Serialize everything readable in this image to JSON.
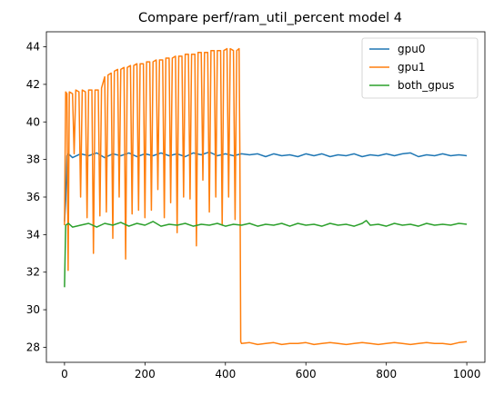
{
  "chart_data": {
    "type": "line",
    "title": "Compare perf/ram_util_percent model 4",
    "xlabel": "",
    "ylabel": "",
    "xlim": [
      -45,
      1045
    ],
    "ylim": [
      27.2,
      44.8
    ],
    "x_ticks": [
      0,
      200,
      400,
      600,
      800,
      1000
    ],
    "y_ticks": [
      28,
      30,
      32,
      34,
      36,
      38,
      40,
      42,
      44
    ],
    "grid": false,
    "legend_position": "top-right",
    "series": [
      {
        "name": "gpu0",
        "color": "#1f77b4",
        "points": [
          [
            0,
            34.7
          ],
          [
            3,
            35.8
          ],
          [
            6,
            38.2
          ],
          [
            10,
            38.3
          ],
          [
            20,
            38.1
          ],
          [
            40,
            38.3
          ],
          [
            60,
            38.2
          ],
          [
            80,
            38.35
          ],
          [
            100,
            38.1
          ],
          [
            120,
            38.3
          ],
          [
            140,
            38.2
          ],
          [
            160,
            38.35
          ],
          [
            180,
            38.15
          ],
          [
            200,
            38.3
          ],
          [
            220,
            38.2
          ],
          [
            240,
            38.35
          ],
          [
            260,
            38.2
          ],
          [
            280,
            38.3
          ],
          [
            300,
            38.15
          ],
          [
            320,
            38.35
          ],
          [
            340,
            38.25
          ],
          [
            360,
            38.4
          ],
          [
            380,
            38.2
          ],
          [
            400,
            38.3
          ],
          [
            420,
            38.2
          ],
          [
            440,
            38.3
          ],
          [
            460,
            38.25
          ],
          [
            480,
            38.3
          ],
          [
            500,
            38.15
          ],
          [
            520,
            38.3
          ],
          [
            540,
            38.2
          ],
          [
            560,
            38.25
          ],
          [
            580,
            38.15
          ],
          [
            600,
            38.3
          ],
          [
            620,
            38.2
          ],
          [
            640,
            38.3
          ],
          [
            660,
            38.15
          ],
          [
            680,
            38.25
          ],
          [
            700,
            38.2
          ],
          [
            720,
            38.3
          ],
          [
            740,
            38.15
          ],
          [
            760,
            38.25
          ],
          [
            780,
            38.2
          ],
          [
            800,
            38.3
          ],
          [
            820,
            38.2
          ],
          [
            840,
            38.3
          ],
          [
            860,
            38.35
          ],
          [
            880,
            38.15
          ],
          [
            900,
            38.25
          ],
          [
            920,
            38.2
          ],
          [
            940,
            38.3
          ],
          [
            960,
            38.2
          ],
          [
            980,
            38.25
          ],
          [
            1000,
            38.2
          ]
        ]
      },
      {
        "name": "gpu1",
        "color": "#ff7f0e",
        "points": [
          [
            0,
            34.5
          ],
          [
            3,
            41.6
          ],
          [
            6,
            41.5
          ],
          [
            9,
            32.1
          ],
          [
            12,
            41.6
          ],
          [
            20,
            41.5
          ],
          [
            24,
            38.3
          ],
          [
            28,
            41.7
          ],
          [
            36,
            41.6
          ],
          [
            40,
            36.0
          ],
          [
            44,
            41.7
          ],
          [
            52,
            41.6
          ],
          [
            56,
            34.9
          ],
          [
            60,
            41.7
          ],
          [
            68,
            41.7
          ],
          [
            72,
            33.0
          ],
          [
            76,
            41.7
          ],
          [
            84,
            41.7
          ],
          [
            88,
            35.0
          ],
          [
            92,
            41.8
          ],
          [
            100,
            42.4
          ],
          [
            104,
            35.2
          ],
          [
            108,
            42.5
          ],
          [
            116,
            42.6
          ],
          [
            120,
            33.8
          ],
          [
            124,
            42.7
          ],
          [
            132,
            42.8
          ],
          [
            136,
            36.0
          ],
          [
            140,
            42.8
          ],
          [
            148,
            42.9
          ],
          [
            152,
            32.7
          ],
          [
            156,
            42.9
          ],
          [
            164,
            43.0
          ],
          [
            168,
            35.1
          ],
          [
            172,
            43.0
          ],
          [
            180,
            43.1
          ],
          [
            184,
            35.3
          ],
          [
            188,
            43.1
          ],
          [
            196,
            43.1
          ],
          [
            200,
            34.9
          ],
          [
            204,
            43.2
          ],
          [
            212,
            43.2
          ],
          [
            216,
            35.3
          ],
          [
            220,
            43.2
          ],
          [
            228,
            43.3
          ],
          [
            232,
            36.4
          ],
          [
            236,
            43.3
          ],
          [
            244,
            43.3
          ],
          [
            248,
            34.9
          ],
          [
            252,
            43.4
          ],
          [
            260,
            43.4
          ],
          [
            264,
            35.7
          ],
          [
            268,
            43.4
          ],
          [
            276,
            43.5
          ],
          [
            280,
            34.1
          ],
          [
            284,
            43.5
          ],
          [
            292,
            43.5
          ],
          [
            296,
            36.0
          ],
          [
            300,
            43.6
          ],
          [
            308,
            43.6
          ],
          [
            312,
            35.9
          ],
          [
            316,
            43.6
          ],
          [
            324,
            43.6
          ],
          [
            328,
            33.4
          ],
          [
            332,
            43.7
          ],
          [
            340,
            43.7
          ],
          [
            344,
            36.9
          ],
          [
            348,
            43.7
          ],
          [
            356,
            43.7
          ],
          [
            360,
            35.2
          ],
          [
            364,
            43.8
          ],
          [
            372,
            43.8
          ],
          [
            376,
            36.0
          ],
          [
            380,
            43.8
          ],
          [
            388,
            43.8
          ],
          [
            392,
            34.5
          ],
          [
            396,
            43.8
          ],
          [
            404,
            43.9
          ],
          [
            408,
            36.0
          ],
          [
            412,
            43.9
          ],
          [
            420,
            43.8
          ],
          [
            424,
            34.8
          ],
          [
            428,
            43.8
          ],
          [
            434,
            43.9
          ],
          [
            436,
            38.0
          ],
          [
            438,
            28.3
          ],
          [
            440,
            28.2
          ],
          [
            460,
            28.25
          ],
          [
            480,
            28.15
          ],
          [
            500,
            28.2
          ],
          [
            520,
            28.25
          ],
          [
            540,
            28.15
          ],
          [
            560,
            28.2
          ],
          [
            580,
            28.2
          ],
          [
            600,
            28.25
          ],
          [
            620,
            28.15
          ],
          [
            640,
            28.2
          ],
          [
            660,
            28.25
          ],
          [
            680,
            28.2
          ],
          [
            700,
            28.15
          ],
          [
            720,
            28.2
          ],
          [
            740,
            28.25
          ],
          [
            760,
            28.2
          ],
          [
            780,
            28.15
          ],
          [
            800,
            28.2
          ],
          [
            820,
            28.25
          ],
          [
            840,
            28.2
          ],
          [
            860,
            28.15
          ],
          [
            880,
            28.2
          ],
          [
            900,
            28.25
          ],
          [
            920,
            28.2
          ],
          [
            940,
            28.2
          ],
          [
            960,
            28.15
          ],
          [
            980,
            28.25
          ],
          [
            1000,
            28.3
          ]
        ]
      },
      {
        "name": "both_gpus",
        "color": "#2ca02c",
        "points": [
          [
            0,
            31.2
          ],
          [
            3,
            34.5
          ],
          [
            10,
            34.6
          ],
          [
            20,
            34.4
          ],
          [
            40,
            34.5
          ],
          [
            60,
            34.6
          ],
          [
            80,
            34.4
          ],
          [
            100,
            34.6
          ],
          [
            120,
            34.5
          ],
          [
            140,
            34.65
          ],
          [
            160,
            34.45
          ],
          [
            180,
            34.6
          ],
          [
            200,
            34.5
          ],
          [
            220,
            34.7
          ],
          [
            240,
            34.45
          ],
          [
            260,
            34.55
          ],
          [
            280,
            34.5
          ],
          [
            300,
            34.6
          ],
          [
            320,
            34.45
          ],
          [
            340,
            34.55
          ],
          [
            360,
            34.5
          ],
          [
            380,
            34.6
          ],
          [
            400,
            34.45
          ],
          [
            420,
            34.55
          ],
          [
            440,
            34.5
          ],
          [
            460,
            34.6
          ],
          [
            480,
            34.45
          ],
          [
            500,
            34.55
          ],
          [
            520,
            34.5
          ],
          [
            540,
            34.6
          ],
          [
            560,
            34.45
          ],
          [
            580,
            34.6
          ],
          [
            600,
            34.5
          ],
          [
            620,
            34.55
          ],
          [
            640,
            34.45
          ],
          [
            660,
            34.6
          ],
          [
            680,
            34.5
          ],
          [
            700,
            34.55
          ],
          [
            720,
            34.45
          ],
          [
            740,
            34.6
          ],
          [
            750,
            34.75
          ],
          [
            760,
            34.5
          ],
          [
            780,
            34.55
          ],
          [
            800,
            34.45
          ],
          [
            820,
            34.6
          ],
          [
            840,
            34.5
          ],
          [
            860,
            34.55
          ],
          [
            880,
            34.45
          ],
          [
            900,
            34.6
          ],
          [
            920,
            34.5
          ],
          [
            940,
            34.55
          ],
          [
            960,
            34.5
          ],
          [
            980,
            34.6
          ],
          [
            1000,
            34.55
          ]
        ]
      }
    ]
  }
}
